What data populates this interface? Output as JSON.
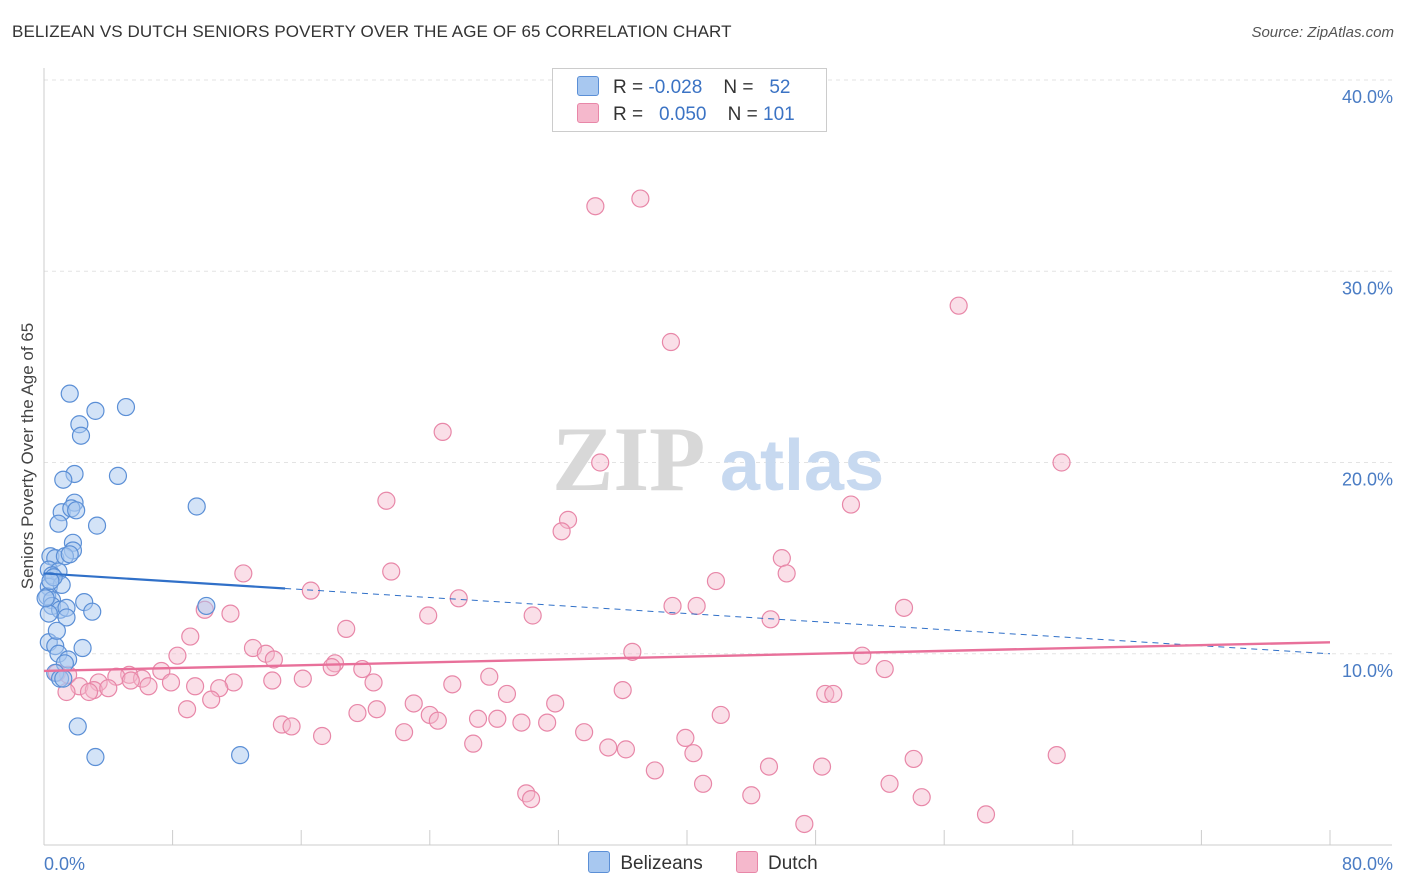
{
  "title": "BELIZEAN VS DUTCH SENIORS POVERTY OVER THE AGE OF 65 CORRELATION CHART",
  "source": "Source: ZipAtlas.com",
  "watermark": {
    "zip": "ZIP",
    "atlas": "atlas"
  },
  "legend": {
    "rows": [
      {
        "r_label": "R =",
        "r_value": "-0.028",
        "n_label": "N =",
        "n_value": "52"
      },
      {
        "r_label": "R =",
        "r_value": "0.050",
        "n_label": "N =",
        "n_value": "101"
      }
    ]
  },
  "bottom_legend": [
    "Belizeans",
    "Dutch"
  ],
  "colors": {
    "belizean_fill": "#a8c8f0",
    "belizean_stroke": "#5b8fd6",
    "belizean_line": "#3070c8",
    "dutch_fill": "#f5b8cc",
    "dutch_stroke": "#e887a8",
    "dutch_line": "#e8709a",
    "axis_text": "#4a7cc4"
  },
  "chart_data": {
    "type": "scatter",
    "title": "BELIZEAN VS DUTCH SENIORS POVERTY OVER THE AGE OF 65 CORRELATION CHART",
    "xlabel": "",
    "ylabel": "Seniors Poverty Over the Age of 65",
    "xlim": [
      0,
      80
    ],
    "ylim": [
      0,
      40
    ],
    "x_tick_labels": [
      "0.0%",
      "80.0%"
    ],
    "y_ticks": [
      10,
      20,
      30,
      40
    ],
    "y_tick_labels": [
      "10.0%",
      "20.0%",
      "30.0%",
      "40.0%"
    ],
    "grid": true,
    "legend_position": "top-center",
    "series": [
      {
        "name": "Belizeans",
        "r": -0.028,
        "n": 52,
        "trend": {
          "x0": 0,
          "y0": 14.2,
          "x1": 80,
          "y1": 10.0,
          "solid_until_x": 15
        },
        "points": [
          [
            1.6,
            23.6
          ],
          [
            2.2,
            22.0
          ],
          [
            3.2,
            22.7
          ],
          [
            2.3,
            21.4
          ],
          [
            5.1,
            22.9
          ],
          [
            1.9,
            19.4
          ],
          [
            1.2,
            19.1
          ],
          [
            4.6,
            19.3
          ],
          [
            1.9,
            17.9
          ],
          [
            1.1,
            17.4
          ],
          [
            1.7,
            17.6
          ],
          [
            0.9,
            16.8
          ],
          [
            3.3,
            16.7
          ],
          [
            9.5,
            17.7
          ],
          [
            1.8,
            15.8
          ],
          [
            0.4,
            15.1
          ],
          [
            1.8,
            15.4
          ],
          [
            0.7,
            15.0
          ],
          [
            1.3,
            15.1
          ],
          [
            0.3,
            14.4
          ],
          [
            0.9,
            14.3
          ],
          [
            0.5,
            14.1
          ],
          [
            0.3,
            13.5
          ],
          [
            1.1,
            13.6
          ],
          [
            0.2,
            13.0
          ],
          [
            0.5,
            12.8
          ],
          [
            0.5,
            12.5
          ],
          [
            2.5,
            12.7
          ],
          [
            1.0,
            12.3
          ],
          [
            1.4,
            12.4
          ],
          [
            3.0,
            12.2
          ],
          [
            0.3,
            12.1
          ],
          [
            10.1,
            12.5
          ],
          [
            1.4,
            11.9
          ],
          [
            0.3,
            10.6
          ],
          [
            0.7,
            10.4
          ],
          [
            2.4,
            10.3
          ],
          [
            0.9,
            10.0
          ],
          [
            1.5,
            9.7
          ],
          [
            1.3,
            9.5
          ],
          [
            0.7,
            9.0
          ],
          [
            1.0,
            8.7
          ],
          [
            1.2,
            8.7
          ],
          [
            2.1,
            6.2
          ],
          [
            3.2,
            4.6
          ],
          [
            12.2,
            4.7
          ],
          [
            0.1,
            12.9
          ],
          [
            0.6,
            14.0
          ],
          [
            1.6,
            15.2
          ],
          [
            0.4,
            13.8
          ],
          [
            2.0,
            17.5
          ],
          [
            0.8,
            11.2
          ]
        ]
      },
      {
        "name": "Dutch",
        "r": 0.05,
        "n": 101,
        "trend": {
          "x0": 0,
          "y0": 9.1,
          "x1": 80,
          "y1": 10.6
        },
        "points": [
          [
            34.3,
            33.4
          ],
          [
            37.1,
            33.8
          ],
          [
            56.9,
            28.2
          ],
          [
            39.0,
            26.3
          ],
          [
            24.8,
            21.6
          ],
          [
            34.6,
            20.0
          ],
          [
            63.3,
            20.0
          ],
          [
            21.3,
            18.0
          ],
          [
            50.2,
            17.8
          ],
          [
            32.6,
            17.0
          ],
          [
            32.2,
            16.4
          ],
          [
            45.9,
            15.0
          ],
          [
            12.4,
            14.2
          ],
          [
            21.6,
            14.3
          ],
          [
            41.8,
            13.8
          ],
          [
            46.2,
            14.2
          ],
          [
            16.6,
            13.3
          ],
          [
            25.8,
            12.9
          ],
          [
            39.1,
            12.5
          ],
          [
            10.0,
            12.3
          ],
          [
            11.6,
            12.1
          ],
          [
            23.9,
            12.0
          ],
          [
            30.4,
            12.0
          ],
          [
            45.2,
            11.8
          ],
          [
            18.8,
            11.3
          ],
          [
            9.1,
            10.9
          ],
          [
            13.0,
            10.3
          ],
          [
            13.8,
            10.0
          ],
          [
            14.3,
            9.7
          ],
          [
            36.6,
            10.1
          ],
          [
            50.9,
            9.9
          ],
          [
            8.3,
            9.9
          ],
          [
            18.1,
            9.5
          ],
          [
            17.9,
            9.3
          ],
          [
            7.3,
            9.1
          ],
          [
            19.8,
            9.2
          ],
          [
            52.3,
            9.2
          ],
          [
            0.8,
            9.0
          ],
          [
            1.5,
            8.9
          ],
          [
            5.3,
            8.9
          ],
          [
            4.5,
            8.8
          ],
          [
            6.1,
            8.7
          ],
          [
            3.4,
            8.5
          ],
          [
            5.4,
            8.6
          ],
          [
            7.9,
            8.5
          ],
          [
            11.8,
            8.5
          ],
          [
            14.2,
            8.6
          ],
          [
            16.1,
            8.7
          ],
          [
            20.5,
            8.5
          ],
          [
            25.4,
            8.4
          ],
          [
            27.7,
            8.8
          ],
          [
            2.2,
            8.3
          ],
          [
            3.1,
            8.1
          ],
          [
            4.0,
            8.2
          ],
          [
            6.5,
            8.3
          ],
          [
            9.4,
            8.3
          ],
          [
            10.9,
            8.2
          ],
          [
            1.4,
            8.0
          ],
          [
            2.8,
            8.0
          ],
          [
            28.8,
            7.9
          ],
          [
            36.0,
            8.1
          ],
          [
            48.6,
            7.9
          ],
          [
            49.1,
            7.9
          ],
          [
            10.4,
            7.6
          ],
          [
            23.0,
            7.4
          ],
          [
            31.8,
            7.4
          ],
          [
            8.9,
            7.1
          ],
          [
            19.5,
            6.9
          ],
          [
            20.7,
            7.1
          ],
          [
            24.0,
            6.8
          ],
          [
            42.1,
            6.8
          ],
          [
            27.0,
            6.6
          ],
          [
            28.2,
            6.6
          ],
          [
            29.7,
            6.4
          ],
          [
            31.3,
            6.4
          ],
          [
            14.8,
            6.3
          ],
          [
            15.4,
            6.2
          ],
          [
            24.5,
            6.5
          ],
          [
            22.4,
            5.9
          ],
          [
            17.3,
            5.7
          ],
          [
            33.6,
            5.9
          ],
          [
            39.9,
            5.6
          ],
          [
            26.7,
            5.3
          ],
          [
            35.1,
            5.1
          ],
          [
            36.2,
            5.0
          ],
          [
            40.4,
            4.8
          ],
          [
            54.1,
            4.5
          ],
          [
            63.0,
            4.7
          ],
          [
            45.1,
            4.1
          ],
          [
            48.4,
            4.1
          ],
          [
            38.0,
            3.9
          ],
          [
            52.6,
            3.2
          ],
          [
            41.0,
            3.2
          ],
          [
            44.0,
            2.6
          ],
          [
            30.0,
            2.7
          ],
          [
            30.3,
            2.4
          ],
          [
            54.6,
            2.5
          ],
          [
            58.6,
            1.6
          ],
          [
            47.3,
            1.1
          ],
          [
            40.6,
            12.5
          ],
          [
            53.5,
            12.4
          ]
        ]
      }
    ]
  }
}
